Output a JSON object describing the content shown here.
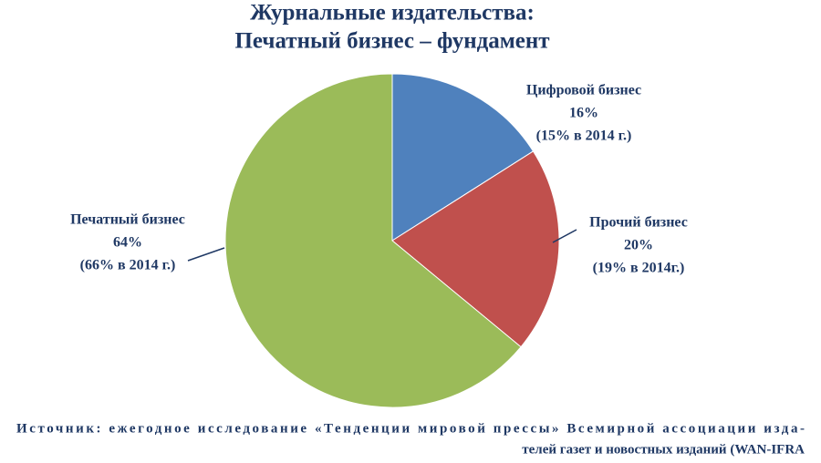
{
  "chart_data": {
    "type": "pie",
    "title": [
      "Журнальные издательства:",
      "Печатный бизнес – фундамент"
    ],
    "categories": [
      "Цифровой бизнес",
      "Прочий бизнес",
      "Печатный бизнес"
    ],
    "values": [
      16,
      20,
      64
    ],
    "value_labels": [
      "16%",
      "20%",
      "64%"
    ],
    "annotations": [
      "(15% в 2014 г.)",
      "(19% в 2014г.)",
      "(66% в 2014 г.)"
    ],
    "colors": [
      "#4f81bd",
      "#c0504d",
      "#9bbb59"
    ],
    "source": [
      "Источник: ежегодное исследование «Тенденции мировой прессы» Всемирной ассоциации изда-",
      "телей газет и новостных изданий (WAN-IFRA"
    ]
  }
}
